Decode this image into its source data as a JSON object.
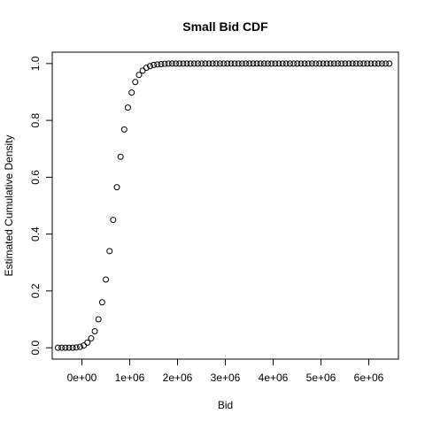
{
  "chart_data": {
    "type": "scatter",
    "title": "Small Bid CDF",
    "xlabel": "Bid",
    "ylabel": "Estimated Cumulative Density",
    "xlim": [
      -620000,
      6620000
    ],
    "ylim": [
      -0.04,
      1.04
    ],
    "x_ticks": [
      0,
      1000000,
      2000000,
      3000000,
      4000000,
      5000000,
      6000000
    ],
    "x_tick_labels": [
      "0e+00",
      "1e+06",
      "2e+06",
      "3e+06",
      "4e+06",
      "5e+06",
      "6e+06"
    ],
    "y_ticks": [
      0.0,
      0.2,
      0.4,
      0.6,
      0.8,
      1.0
    ],
    "y_tick_labels": [
      "0.0",
      "0.2",
      "0.4",
      "0.6",
      "0.8",
      "1.0"
    ],
    "grid": false,
    "legend": "none",
    "point_style": "open-circle",
    "color": "#000000",
    "series": [
      {
        "x": [
          -500000,
          -423000,
          -346000,
          -269000,
          -192000,
          -115000,
          -38000,
          39000,
          116000,
          193000,
          270000,
          347000,
          424000,
          501000,
          578000,
          655000,
          732000,
          809000,
          886000,
          963000,
          1040000,
          1117000,
          1194000,
          1271000,
          1348000,
          1425000,
          1502000,
          1579000,
          1656000,
          1733000,
          1810000,
          1887000,
          1964000,
          2041000,
          2118000,
          2195000,
          2272000,
          2349000,
          2426000,
          2503000,
          2580000,
          2657000,
          2734000,
          2811000,
          2888000,
          2965000,
          3042000,
          3119000,
          3196000,
          3273000,
          3350000,
          3427000,
          3504000,
          3581000,
          3658000,
          3735000,
          3812000,
          3889000,
          3966000,
          4043000,
          4120000,
          4197000,
          4274000,
          4351000,
          4428000,
          4505000,
          4582000,
          4659000,
          4736000,
          4813000,
          4890000,
          4967000,
          5044000,
          5121000,
          5198000,
          5275000,
          5352000,
          5429000,
          5506000,
          5583000,
          5660000,
          5737000,
          5814000,
          5891000,
          5968000,
          6045000,
          6122000,
          6199000,
          6276000,
          6353000,
          6430000
        ],
        "y": [
          0.0,
          0.0,
          0.0,
          0.0,
          0.0,
          0.001,
          0.003,
          0.008,
          0.018,
          0.033,
          0.058,
          0.1,
          0.16,
          0.24,
          0.34,
          0.45,
          0.565,
          0.672,
          0.768,
          0.845,
          0.898,
          0.935,
          0.96,
          0.975,
          0.985,
          0.991,
          0.995,
          0.997,
          0.998,
          0.999,
          1.0,
          1.0,
          1.0,
          1.0,
          1.0,
          1.0,
          1.0,
          1.0,
          1.0,
          1.0,
          1.0,
          1.0,
          1.0,
          1.0,
          1.0,
          1.0,
          1.0,
          1.0,
          1.0,
          1.0,
          1.0,
          1.0,
          1.0,
          1.0,
          1.0,
          1.0,
          1.0,
          1.0,
          1.0,
          1.0,
          1.0,
          1.0,
          1.0,
          1.0,
          1.0,
          1.0,
          1.0,
          1.0,
          1.0,
          1.0,
          1.0,
          1.0,
          1.0,
          1.0,
          1.0,
          1.0,
          1.0,
          1.0,
          1.0,
          1.0,
          1.0,
          1.0,
          1.0,
          1.0,
          1.0,
          1.0,
          1.0,
          1.0,
          1.0,
          1.0,
          1.0
        ]
      }
    ]
  }
}
